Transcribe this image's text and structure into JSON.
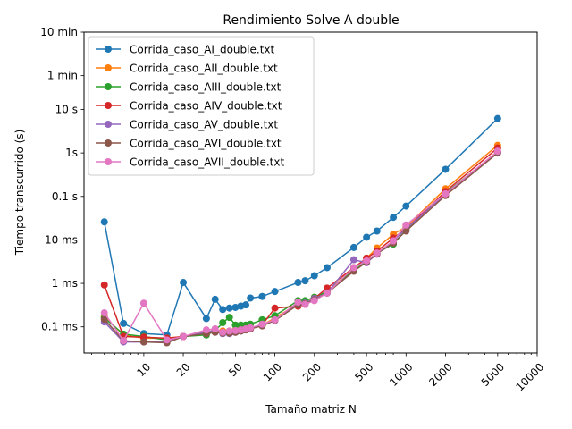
{
  "chart_data": {
    "type": "line",
    "title": "Rendimiento Solve A double",
    "xlabel": "Tamaño matriz N",
    "ylabel": "Tiempo transcurrido (s)",
    "x_scale": "log",
    "y_scale": "log",
    "xlim": [
      3.5,
      10000
    ],
    "ylim": [
      2.5e-05,
      600
    ],
    "x_ticks": [
      {
        "value": 10,
        "label": "10"
      },
      {
        "value": 20,
        "label": "20"
      },
      {
        "value": 50,
        "label": "50"
      },
      {
        "value": 100,
        "label": "100"
      },
      {
        "value": 200,
        "label": "200"
      },
      {
        "value": 500,
        "label": "500"
      },
      {
        "value": 1000,
        "label": "1000"
      },
      {
        "value": 2000,
        "label": "2000"
      },
      {
        "value": 5000,
        "label": "5000"
      },
      {
        "value": 10000,
        "label": "10000"
      }
    ],
    "y_ticks": [
      {
        "value": 0.0001,
        "label": "0.1 ms"
      },
      {
        "value": 0.001,
        "label": "1 ms"
      },
      {
        "value": 0.01,
        "label": "10 ms"
      },
      {
        "value": 0.1,
        "label": "0.1 s"
      },
      {
        "value": 1,
        "label": "1s"
      },
      {
        "value": 10,
        "label": "10 s"
      },
      {
        "value": 60,
        "label": "1 min"
      },
      {
        "value": 600,
        "label": "10 min"
      }
    ],
    "legend_position": "top-left",
    "grid": false,
    "series": [
      {
        "name": "Corrida_caso_AI_double.txt",
        "color": "#1f77b4",
        "x": [
          5,
          7,
          10,
          15,
          20,
          30,
          35,
          40,
          45,
          50,
          55,
          60,
          65,
          80,
          100,
          150,
          170,
          200,
          250,
          400,
          500,
          600,
          800,
          1000,
          2000,
          5000
        ],
        "y": [
          0.026,
          0.00012,
          7e-05,
          6.5e-05,
          0.00105,
          0.000155,
          0.00043,
          0.00025,
          0.00027,
          0.00028,
          0.0003,
          0.00032,
          0.00046,
          0.0005,
          0.00065,
          0.00105,
          0.00115,
          0.0015,
          0.0023,
          0.0067,
          0.0115,
          0.016,
          0.033,
          0.06,
          0.42,
          6.2
        ]
      },
      {
        "name": "Corrida_caso_AII_double.txt",
        "color": "#ff7f0e",
        "x": [
          5,
          7,
          10,
          15,
          20,
          30,
          35,
          40,
          45,
          50,
          55,
          60,
          65,
          80,
          100,
          150,
          170,
          200,
          250,
          400,
          500,
          600,
          800,
          1000,
          2000,
          5000
        ],
        "y": [
          0.00017,
          6.5e-05,
          5.5e-05,
          5.5e-05,
          6e-05,
          7.5e-05,
          8.5e-05,
          8e-05,
          8e-05,
          8.5e-05,
          8.5e-05,
          9e-05,
          9.5e-05,
          0.00011,
          0.00016,
          0.00034,
          0.00036,
          0.00045,
          0.00065,
          0.0022,
          0.0038,
          0.0065,
          0.0135,
          0.02,
          0.15,
          1.5
        ]
      },
      {
        "name": "Corrida_caso_AIII_double.txt",
        "color": "#2ca02c",
        "x": [
          5,
          7,
          10,
          15,
          20,
          30,
          35,
          40,
          45,
          50,
          55,
          60,
          65,
          80,
          100,
          150,
          170,
          200,
          250,
          400,
          500,
          600,
          800,
          1000,
          2000,
          5000
        ],
        "y": [
          0.00016,
          6.8e-05,
          6e-05,
          5e-05,
          6e-05,
          6.5e-05,
          8e-05,
          0.000125,
          0.000165,
          0.00011,
          0.00011,
          0.00011,
          0.000115,
          0.000145,
          0.00018,
          0.0004,
          0.0004,
          0.00048,
          0.00065,
          0.002,
          0.0032,
          0.005,
          0.008,
          0.017,
          0.12,
          1.05
        ]
      },
      {
        "name": "Corrida_caso_AIV_double.txt",
        "color": "#d62728",
        "x": [
          5,
          7,
          10,
          15,
          20,
          30,
          35,
          40,
          45,
          50,
          55,
          60,
          65,
          80,
          100,
          150,
          170,
          200,
          250,
          400,
          500,
          600,
          800,
          1000,
          2000,
          5000
        ],
        "y": [
          0.00092,
          6e-05,
          5.8e-05,
          5.5e-05,
          6e-05,
          7.5e-05,
          8e-05,
          7.5e-05,
          7.5e-05,
          8e-05,
          8.5e-05,
          9e-05,
          9e-05,
          0.00011,
          0.00027,
          0.0003,
          0.00033,
          0.00045,
          0.00078,
          0.0023,
          0.0038,
          0.0055,
          0.011,
          0.018,
          0.13,
          1.3
        ]
      },
      {
        "name": "Corrida_caso_AV_double.txt",
        "color": "#9467bd",
        "x": [
          5,
          7,
          10,
          15,
          20,
          30,
          35,
          40,
          45,
          50,
          55,
          60,
          65,
          80,
          100,
          150,
          170,
          200,
          250,
          400,
          500,
          600,
          800,
          1000,
          2000,
          5000
        ],
        "y": [
          0.00013,
          4.5e-05,
          4.5e-05,
          4.5e-05,
          6e-05,
          7.5e-05,
          8.5e-05,
          7e-05,
          7e-05,
          7.5e-05,
          8e-05,
          8.5e-05,
          9e-05,
          0.00011,
          0.00014,
          0.00033,
          0.00035,
          0.00045,
          0.0006,
          0.0035,
          0.003,
          0.0047,
          0.0095,
          0.018,
          0.11,
          1.05
        ]
      },
      {
        "name": "Corrida_caso_AVI_double.txt",
        "color": "#8c564b",
        "x": [
          5,
          7,
          10,
          15,
          20,
          30,
          35,
          40,
          45,
          50,
          55,
          60,
          65,
          80,
          100,
          150,
          170,
          200,
          250,
          400,
          500,
          600,
          800,
          1000,
          2000,
          5000
        ],
        "y": [
          0.00015,
          4.8e-05,
          4.5e-05,
          4.3e-05,
          6e-05,
          7e-05,
          7.5e-05,
          7.2e-05,
          7.2e-05,
          7.5e-05,
          8e-05,
          8.5e-05,
          9e-05,
          0.000105,
          0.00014,
          0.00032,
          0.00034,
          0.00042,
          0.0006,
          0.0019,
          0.0031,
          0.0048,
          0.0085,
          0.016,
          0.105,
          1.0
        ]
      },
      {
        "name": "Corrida_caso_AVII_double.txt",
        "color": "#e377c2",
        "x": [
          5,
          7,
          10,
          15,
          20,
          30,
          35,
          40,
          45,
          50,
          55,
          60,
          65,
          80,
          100,
          150,
          170,
          200,
          250,
          400,
          500,
          600,
          800,
          1000,
          2000,
          5000
        ],
        "y": [
          0.00021,
          4.8e-05,
          0.00035,
          5e-05,
          6e-05,
          8.5e-05,
          9e-05,
          7.5e-05,
          8e-05,
          8.2e-05,
          8.5e-05,
          9e-05,
          9.5e-05,
          0.000115,
          0.000145,
          0.00037,
          0.00033,
          0.0004,
          0.0006,
          0.0023,
          0.0033,
          0.005,
          0.0095,
          0.022,
          0.115,
          1.1
        ]
      }
    ]
  }
}
